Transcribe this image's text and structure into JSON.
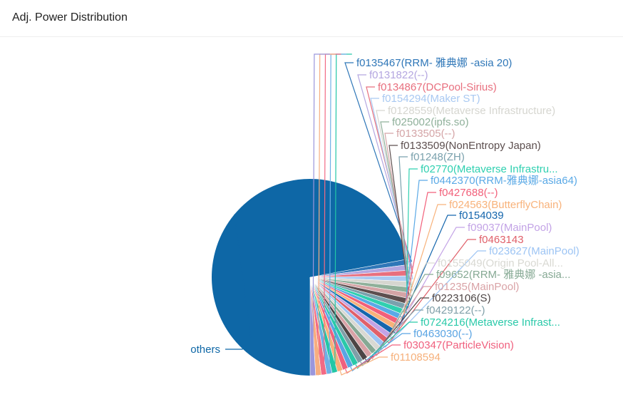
{
  "panel": {
    "title": "Adj. Power Distribution"
  },
  "chart_data": {
    "type": "pie",
    "title": "Adj. Power Distribution",
    "legend": "none",
    "slices": [
      {
        "label": "others",
        "value": 72.0,
        "color": "#0e67a6"
      },
      {
        "label": "f0135467(RRM- 雅典娜 -asia 20)",
        "value": 0.9,
        "color": "#2f77b8"
      },
      {
        "label": "f0131822(--)",
        "value": 0.9,
        "color": "#b4a6e0"
      },
      {
        "label": "f0134867(DCPool-Sirius)",
        "value": 0.9,
        "color": "#e86f7e"
      },
      {
        "label": "f0154294(Maker ST)",
        "value": 0.9,
        "color": "#a9c9f2"
      },
      {
        "label": "f0128559(Metaverse Infrastructure)",
        "value": 0.9,
        "color": "#d6d6d0"
      },
      {
        "label": "f025002(ipfs.so)",
        "value": 0.9,
        "color": "#8fb09a"
      },
      {
        "label": "f0133505(--)",
        "value": 0.9,
        "color": "#d4a4a6"
      },
      {
        "label": "f0133509(NonEntropy Japan)",
        "value": 0.9,
        "color": "#5d4f4f"
      },
      {
        "label": "f01248(ZH)",
        "value": 0.9,
        "color": "#7aa1ad"
      },
      {
        "label": "f02770(Metaverse Infrastru...",
        "value": 0.9,
        "color": "#2fd0b0"
      },
      {
        "label": "f0442370(RRM-雅典娜-asia64)",
        "value": 0.9,
        "color": "#5aa9e6"
      },
      {
        "label": "f0427688(--)",
        "value": 0.9,
        "color": "#f2607a"
      },
      {
        "label": "f024563(ButterflyChain)",
        "value": 0.9,
        "color": "#f8b27a"
      },
      {
        "label": "f0154039",
        "value": 0.9,
        "color": "#1566ad"
      },
      {
        "label": "f09037(MainPool)",
        "value": 0.9,
        "color": "#c3a3e6"
      },
      {
        "label": "f0463143",
        "value": 0.9,
        "color": "#e0606a"
      },
      {
        "label": "f023627(MainPool)",
        "value": 0.9,
        "color": "#9cc4f4"
      },
      {
        "label": "f0155049(Origin Pool-All...",
        "value": 0.9,
        "color": "#d9d9d3"
      },
      {
        "label": "f09652(RRM- 雅典娜 -asia...",
        "value": 0.9,
        "color": "#86a994"
      },
      {
        "label": "f01235(MainPool)",
        "value": 0.9,
        "color": "#d9a2a6"
      },
      {
        "label": "f0223106(S)",
        "value": 0.9,
        "color": "#4d4545"
      },
      {
        "label": "f0429122(--)",
        "value": 0.9,
        "color": "#7f9fa8"
      },
      {
        "label": "f0724216(Metaverse Infrast...",
        "value": 0.9,
        "color": "#29c9a9"
      },
      {
        "label": "f0463030(--)",
        "value": 0.9,
        "color": "#5aa4e3"
      },
      {
        "label": "f030347(ParticleVision)",
        "value": 0.9,
        "color": "#f0607e"
      },
      {
        "label": "f01108594",
        "value": 0.9,
        "color": "#f6b07a"
      },
      {
        "label": "",
        "value": 0.9,
        "color": "#22c7a6"
      },
      {
        "label": "",
        "value": 0.9,
        "color": "#6fb0e6"
      },
      {
        "label": "",
        "value": 0.9,
        "color": "#f26a84"
      },
      {
        "label": "",
        "value": 0.9,
        "color": "#f7ae80"
      },
      {
        "label": "",
        "value": 0.9,
        "color": "#9a96dc"
      }
    ]
  }
}
